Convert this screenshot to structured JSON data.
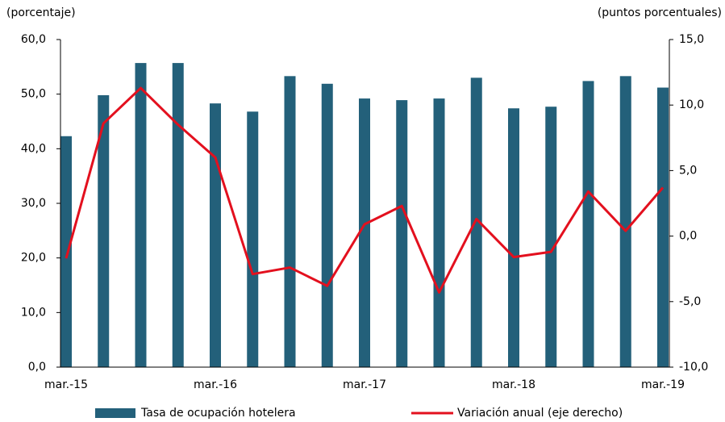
{
  "chart_data": {
    "type": "bar_line",
    "y_label": "(porcentaje)",
    "y2_label": "(puntos porcentuales)",
    "categories": [
      "mar.-15",
      null,
      null,
      null,
      "mar.-16",
      null,
      null,
      null,
      "mar.-17",
      null,
      null,
      null,
      "mar.-18",
      null,
      null,
      null,
      "mar.-19"
    ],
    "series": [
      {
        "name": "Tasa de ocupación hotelera",
        "color": "#23607a",
        "type": "bar",
        "values": [
          42.3,
          49.8,
          55.7,
          55.7,
          48.3,
          46.8,
          53.3,
          51.9,
          49.2,
          48.9,
          49.2,
          53.0,
          47.4,
          47.7,
          52.4,
          53.3,
          51.2
        ]
      },
      {
        "name": "Variación anual (eje derecho)",
        "color": "#e3101e",
        "type": "line",
        "axis": "y2",
        "values": [
          -1.7,
          8.6,
          11.3,
          8.5,
          6.0,
          -2.9,
          -2.4,
          -3.8,
          0.9,
          2.3,
          -4.3,
          1.3,
          -1.6,
          -1.2,
          3.4,
          0.4,
          3.7
        ]
      }
    ],
    "ylim": [
      0,
      60
    ],
    "yticks": [
      {
        "value": 0,
        "label": "0,0"
      },
      {
        "value": 10,
        "label": "10,0"
      },
      {
        "value": 20,
        "label": "20,0"
      },
      {
        "value": 30,
        "label": "30,0"
      },
      {
        "value": 40,
        "label": "40,0"
      },
      {
        "value": 50,
        "label": "50,0"
      },
      {
        "value": 60,
        "label": "60,0"
      }
    ],
    "y2lim": [
      -10,
      15
    ],
    "y2ticks": [
      {
        "value": -10,
        "label": "-10,0"
      },
      {
        "value": -5,
        "label": "-5,0"
      },
      {
        "value": 0,
        "label": "0,0"
      },
      {
        "value": 5,
        "label": "5,0"
      },
      {
        "value": 10,
        "label": "10,0"
      },
      {
        "value": 15,
        "label": "15,0"
      }
    ]
  }
}
